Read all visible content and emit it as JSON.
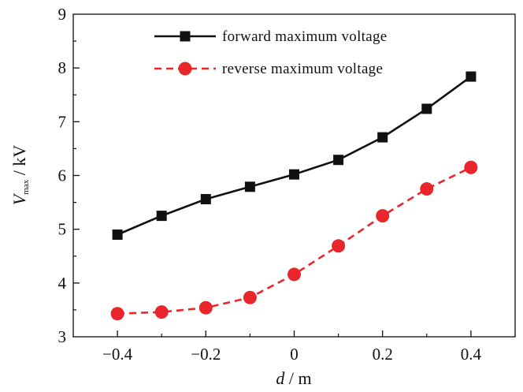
{
  "chart_data": {
    "type": "line",
    "x": [
      -0.4,
      -0.3,
      -0.2,
      -0.1,
      0,
      0.1,
      0.2,
      0.3,
      0.4
    ],
    "xlim": [
      -0.5,
      0.5
    ],
    "ylim": [
      3,
      9
    ],
    "x_ticks": [
      -0.4,
      -0.2,
      0,
      0.2,
      0.4
    ],
    "x_tick_labels": [
      "−0.4",
      "−0.2",
      "0",
      "0.2",
      "0.4"
    ],
    "y_ticks": [
      3,
      4,
      5,
      6,
      7,
      8,
      9
    ],
    "y_tick_labels": [
      "3",
      "4",
      "5",
      "6",
      "7",
      "8",
      "9"
    ],
    "xlabel": {
      "var": "d",
      "unit": " / m"
    },
    "ylabel": {
      "var": "V",
      "sub": "max",
      "unit": " / kV"
    },
    "grid": false,
    "legend_position": "top-center",
    "series": [
      {
        "name": "forward maximum voltage",
        "values": [
          4.9,
          5.25,
          5.56,
          5.79,
          6.02,
          6.29,
          6.71,
          7.24,
          7.84
        ],
        "color": "#111111",
        "marker": "square",
        "line_style": "solid"
      },
      {
        "name": "reverse maximum voltage",
        "values": [
          3.43,
          3.46,
          3.54,
          3.73,
          4.16,
          4.69,
          5.25,
          5.75,
          6.15
        ],
        "color": "#e8262b",
        "marker": "circle",
        "line_style": "dashed"
      }
    ]
  }
}
